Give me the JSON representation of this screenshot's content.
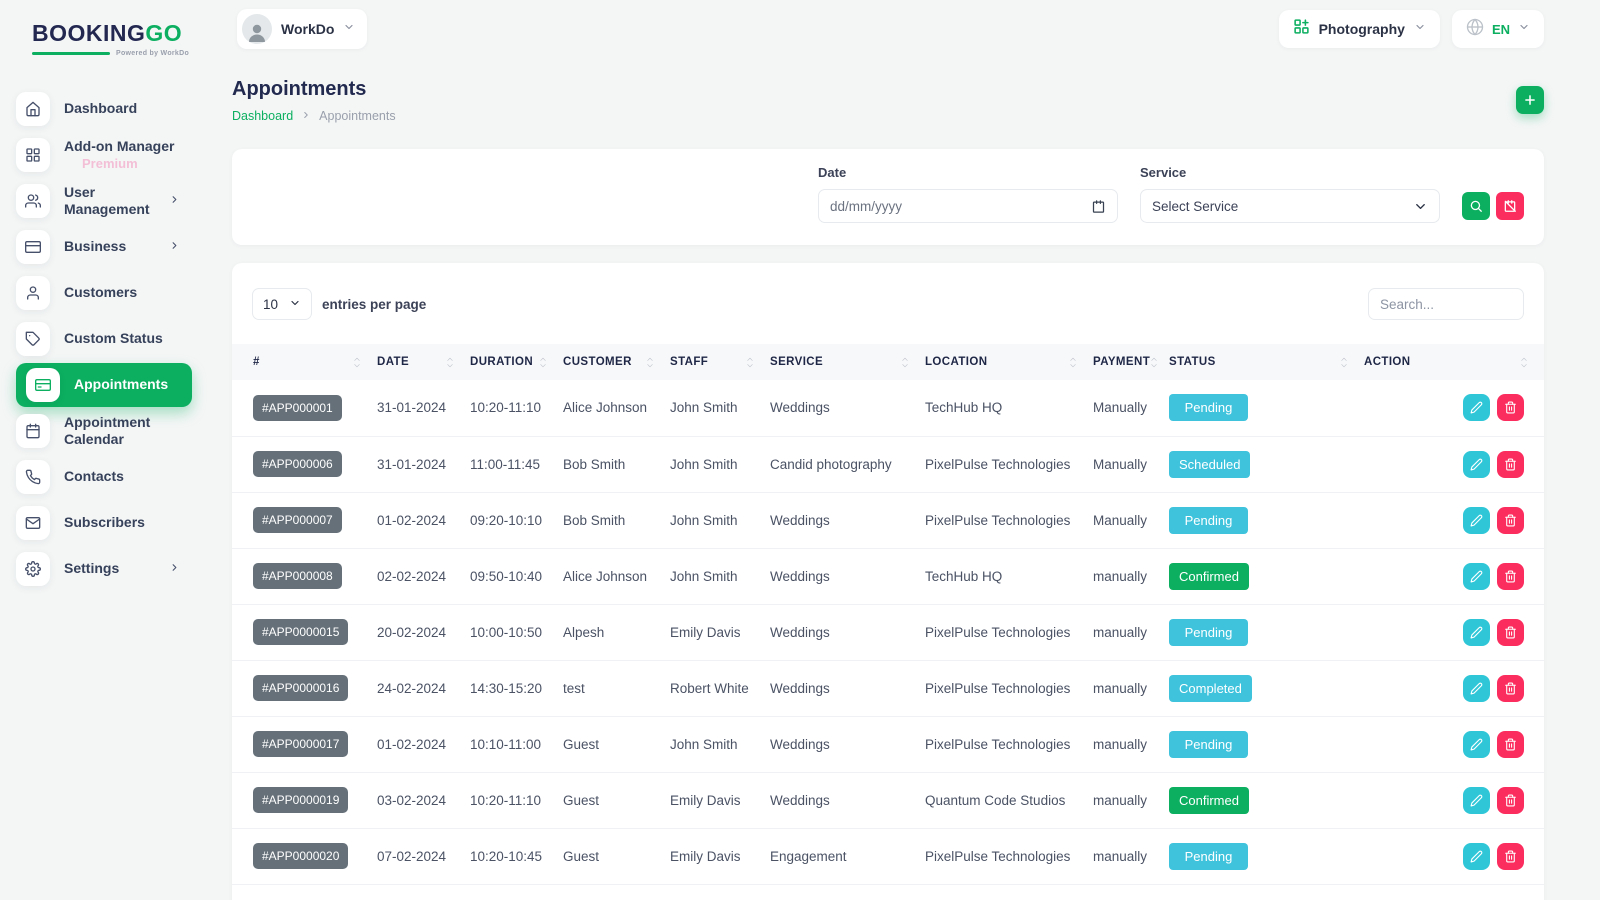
{
  "brand": {
    "name_primary": "BOOKING",
    "name_accent": "GO",
    "powered_by": "Powered by WorkDo"
  },
  "header": {
    "workspace_name": "WorkDo",
    "module_name": "Photography",
    "language_code": "EN"
  },
  "sidebar": {
    "items": [
      {
        "label": "Dashboard",
        "icon": "home-icon",
        "active": false,
        "chevron": false,
        "sub": null
      },
      {
        "label": "Add-on Manager",
        "icon": "grid-icon",
        "active": false,
        "chevron": false,
        "sub": "Premium"
      },
      {
        "label": "User Management",
        "icon": "users-icon",
        "active": false,
        "chevron": true,
        "sub": null
      },
      {
        "label": "Business",
        "icon": "credit-card-icon",
        "active": false,
        "chevron": true,
        "sub": null
      },
      {
        "label": "Customers",
        "icon": "user-icon",
        "active": false,
        "chevron": false,
        "sub": null
      },
      {
        "label": "Custom Status",
        "icon": "tag-icon",
        "active": false,
        "chevron": false,
        "sub": null
      },
      {
        "label": "Appointments",
        "icon": "card-icon",
        "active": true,
        "chevron": false,
        "sub": null
      },
      {
        "label": "Appointment Calendar",
        "icon": "calendar-icon",
        "active": false,
        "chevron": false,
        "sub": null
      },
      {
        "label": "Contacts",
        "icon": "phone-icon",
        "active": false,
        "chevron": false,
        "sub": null
      },
      {
        "label": "Subscribers",
        "icon": "mail-icon",
        "active": false,
        "chevron": false,
        "sub": null
      },
      {
        "label": "Settings",
        "icon": "gear-icon",
        "active": false,
        "chevron": true,
        "sub": null
      }
    ]
  },
  "page": {
    "title": "Appointments",
    "breadcrumb_home": "Dashboard",
    "breadcrumb_current": "Appointments"
  },
  "filters": {
    "date_label": "Date",
    "date_placeholder": "dd/mm/yyyy",
    "service_label": "Service",
    "service_value": "Select Service"
  },
  "table": {
    "entries_per_page": "10",
    "entries_label": "entries per page",
    "search_placeholder": "Search...",
    "columns": [
      "#",
      "DATE",
      "DURATION",
      "CUSTOMER",
      "STAFF",
      "SERVICE",
      "LOCATION",
      "PAYMENT",
      "STATUS",
      "ACTION"
    ],
    "rows": [
      {
        "id": "#APP000001",
        "date": "31-01-2024",
        "duration": "10:20-11:10",
        "customer": "Alice Johnson",
        "staff": "John Smith",
        "service": "Weddings",
        "location": "TechHub HQ",
        "payment": "Manually",
        "status": "Pending",
        "status_variant": "info"
      },
      {
        "id": "#APP000006",
        "date": "31-01-2024",
        "duration": "11:00-11:45",
        "customer": "Bob Smith",
        "staff": "John Smith",
        "service": "Candid photography",
        "location": "PixelPulse Technologies",
        "payment": "Manually",
        "status": "Scheduled",
        "status_variant": "info"
      },
      {
        "id": "#APP000007",
        "date": "01-02-2024",
        "duration": "09:20-10:10",
        "customer": "Bob Smith",
        "staff": "John Smith",
        "service": "Weddings",
        "location": "PixelPulse Technologies",
        "payment": "Manually",
        "status": "Pending",
        "status_variant": "info"
      },
      {
        "id": "#APP000008",
        "date": "02-02-2024",
        "duration": "09:50-10:40",
        "customer": "Alice Johnson",
        "staff": "John Smith",
        "service": "Weddings",
        "location": "TechHub HQ",
        "payment": "manually",
        "status": "Confirmed",
        "status_variant": "success"
      },
      {
        "id": "#APP0000015",
        "date": "20-02-2024",
        "duration": "10:00-10:50",
        "customer": "Alpesh",
        "staff": "Emily Davis",
        "service": "Weddings",
        "location": "PixelPulse Technologies",
        "payment": "manually",
        "status": "Pending",
        "status_variant": "info"
      },
      {
        "id": "#APP0000016",
        "date": "24-02-2024",
        "duration": "14:30-15:20",
        "customer": "test",
        "staff": "Robert White",
        "service": "Weddings",
        "location": "PixelPulse Technologies",
        "payment": "manually",
        "status": "Completed",
        "status_variant": "info"
      },
      {
        "id": "#APP0000017",
        "date": "01-02-2024",
        "duration": "10:10-11:00",
        "customer": "Guest",
        "staff": "John Smith",
        "service": "Weddings",
        "location": "PixelPulse Technologies",
        "payment": "manually",
        "status": "Pending",
        "status_variant": "info"
      },
      {
        "id": "#APP0000019",
        "date": "03-02-2024",
        "duration": "10:20-11:10",
        "customer": "Guest",
        "staff": "Emily Davis",
        "service": "Weddings",
        "location": "Quantum Code Studios",
        "payment": "manually",
        "status": "Confirmed",
        "status_variant": "success"
      },
      {
        "id": "#APP0000020",
        "date": "07-02-2024",
        "duration": "10:20-10:45",
        "customer": "Guest",
        "staff": "Emily Davis",
        "service": "Engagement",
        "location": "PixelPulse Technologies",
        "payment": "manually",
        "status": "Pending",
        "status_variant": "info"
      }
    ]
  },
  "colors": {
    "brand_green": "#0caf60",
    "brand_navy": "#232851",
    "info_badge": "#3fc3dd",
    "success_badge": "#0caf60",
    "id_badge": "#657079",
    "edit_button": "#2fc7d8",
    "delete_button": "#fb2d5f",
    "premium_pink": "#f3bfd6"
  }
}
